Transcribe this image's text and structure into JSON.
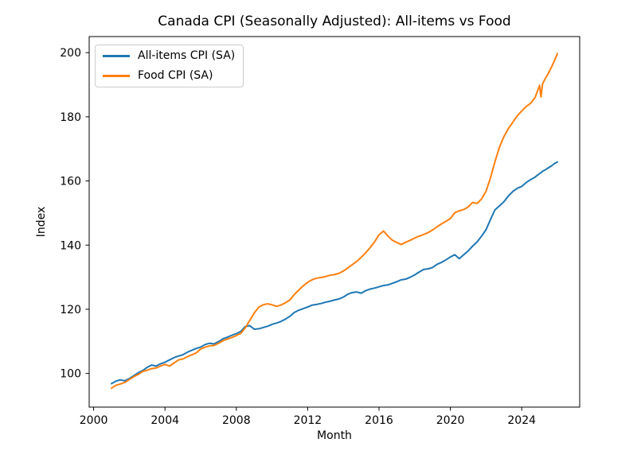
{
  "chart_data": {
    "type": "line",
    "title": "Canada CPI (Seasonally Adjusted): All-items vs Food",
    "xlabel": "Month",
    "ylabel": "Index",
    "x_unit": "decimal_year",
    "xlim": [
      1999.75,
      2027.25
    ],
    "ylim": [
      89.5,
      205.0
    ],
    "x_ticks": [
      2000,
      2004,
      2008,
      2012,
      2016,
      2020,
      2024
    ],
    "y_ticks": [
      100,
      120,
      140,
      160,
      180,
      200
    ],
    "grid": false,
    "legend_position": "upper-left",
    "background_color": "#ffffff",
    "spine_color": "#000000",
    "x": [
      2001,
      2001.25,
      2001.5,
      2001.75,
      2002,
      2002.25,
      2002.5,
      2002.75,
      2003,
      2003.25,
      2003.5,
      2003.75,
      2004,
      2004.25,
      2004.5,
      2004.75,
      2005,
      2005.25,
      2005.5,
      2005.75,
      2006,
      2006.25,
      2006.5,
      2006.75,
      2007,
      2007.25,
      2007.5,
      2007.75,
      2008,
      2008.25,
      2008.5,
      2008.75,
      2009,
      2009.25,
      2009.5,
      2009.75,
      2010,
      2010.25,
      2010.5,
      2010.75,
      2011,
      2011.25,
      2011.5,
      2011.75,
      2012,
      2012.25,
      2012.5,
      2012.75,
      2013,
      2013.25,
      2013.5,
      2013.75,
      2014,
      2014.25,
      2014.5,
      2014.75,
      2015,
      2015.25,
      2015.5,
      2015.75,
      2016,
      2016.25,
      2016.5,
      2016.75,
      2017,
      2017.25,
      2017.5,
      2017.75,
      2018,
      2018.25,
      2018.5,
      2018.75,
      2019,
      2019.25,
      2019.5,
      2019.75,
      2020,
      2020.25,
      2020.5,
      2020.75,
      2021,
      2021.25,
      2021.5,
      2021.75,
      2022,
      2022.25,
      2022.5,
      2022.75,
      2023,
      2023.25,
      2023.5,
      2023.75,
      2024,
      2024.25,
      2024.5,
      2024.75,
      2025,
      2025.08,
      2025.17,
      2025.33,
      2025.5,
      2025.67,
      2025.83,
      2026
    ],
    "series": [
      {
        "name": "All-items CPI (SA)",
        "color": "#1f77b4",
        "values": [
          96.8,
          97.6,
          98.0,
          97.7,
          98.4,
          99.3,
          100.2,
          100.9,
          101.9,
          102.6,
          102.3,
          103.0,
          103.5,
          104.2,
          104.9,
          105.4,
          105.8,
          106.6,
          107.2,
          107.8,
          108.2,
          109.0,
          109.4,
          109.2,
          109.9,
          110.8,
          111.3,
          111.9,
          112.4,
          113.1,
          114.6,
          114.9,
          113.8,
          113.9,
          114.3,
          114.7,
          115.3,
          115.7,
          116.2,
          116.9,
          117.8,
          119.0,
          119.7,
          120.2,
          120.7,
          121.3,
          121.5,
          121.8,
          122.2,
          122.5,
          122.9,
          123.2,
          123.8,
          124.7,
          125.2,
          125.4,
          125.0,
          125.8,
          126.3,
          126.6,
          127.0,
          127.4,
          127.6,
          128.1,
          128.6,
          129.2,
          129.4,
          130.0,
          130.7,
          131.6,
          132.4,
          132.6,
          133.0,
          134.0,
          134.6,
          135.4,
          136.3,
          137.0,
          135.8,
          137.0,
          138.2,
          139.7,
          141.0,
          142.8,
          144.8,
          148.0,
          151.0,
          152.2,
          153.5,
          155.3,
          156.7,
          157.7,
          158.3,
          159.5,
          160.4,
          161.2,
          162.3,
          162.6,
          163.0,
          163.5,
          164.1,
          164.7,
          165.4,
          165.9
        ]
      },
      {
        "name": "Food CPI (SA)",
        "color": "#ff7f0e",
        "values": [
          95.4,
          96.3,
          96.7,
          97.2,
          98.1,
          99.0,
          99.7,
          100.6,
          101.0,
          101.5,
          101.7,
          102.3,
          102.8,
          102.3,
          103.2,
          104.2,
          104.5,
          105.2,
          105.8,
          106.4,
          107.6,
          108.2,
          108.6,
          108.7,
          109.4,
          110.2,
          110.7,
          111.2,
          111.8,
          112.5,
          114.2,
          116.5,
          118.8,
          120.6,
          121.4,
          121.7,
          121.4,
          120.9,
          121.3,
          122.0,
          122.9,
          124.6,
          126.0,
          127.3,
          128.4,
          129.2,
          129.7,
          129.9,
          130.2,
          130.6,
          130.8,
          131.2,
          131.9,
          132.9,
          133.9,
          134.9,
          136.2,
          137.6,
          139.2,
          141.0,
          143.2,
          144.4,
          142.8,
          141.5,
          140.8,
          140.2,
          140.9,
          141.5,
          142.2,
          142.8,
          143.3,
          143.9,
          144.7,
          145.7,
          146.6,
          147.4,
          148.3,
          150.1,
          150.7,
          151.1,
          151.9,
          153.3,
          153.0,
          154.4,
          156.8,
          161.0,
          166.0,
          170.5,
          173.8,
          176.3,
          178.3,
          180.3,
          181.8,
          183.2,
          184.2,
          186.0,
          189.8,
          186.2,
          190.3,
          192.0,
          193.6,
          195.5,
          197.4,
          199.7
        ]
      }
    ]
  }
}
